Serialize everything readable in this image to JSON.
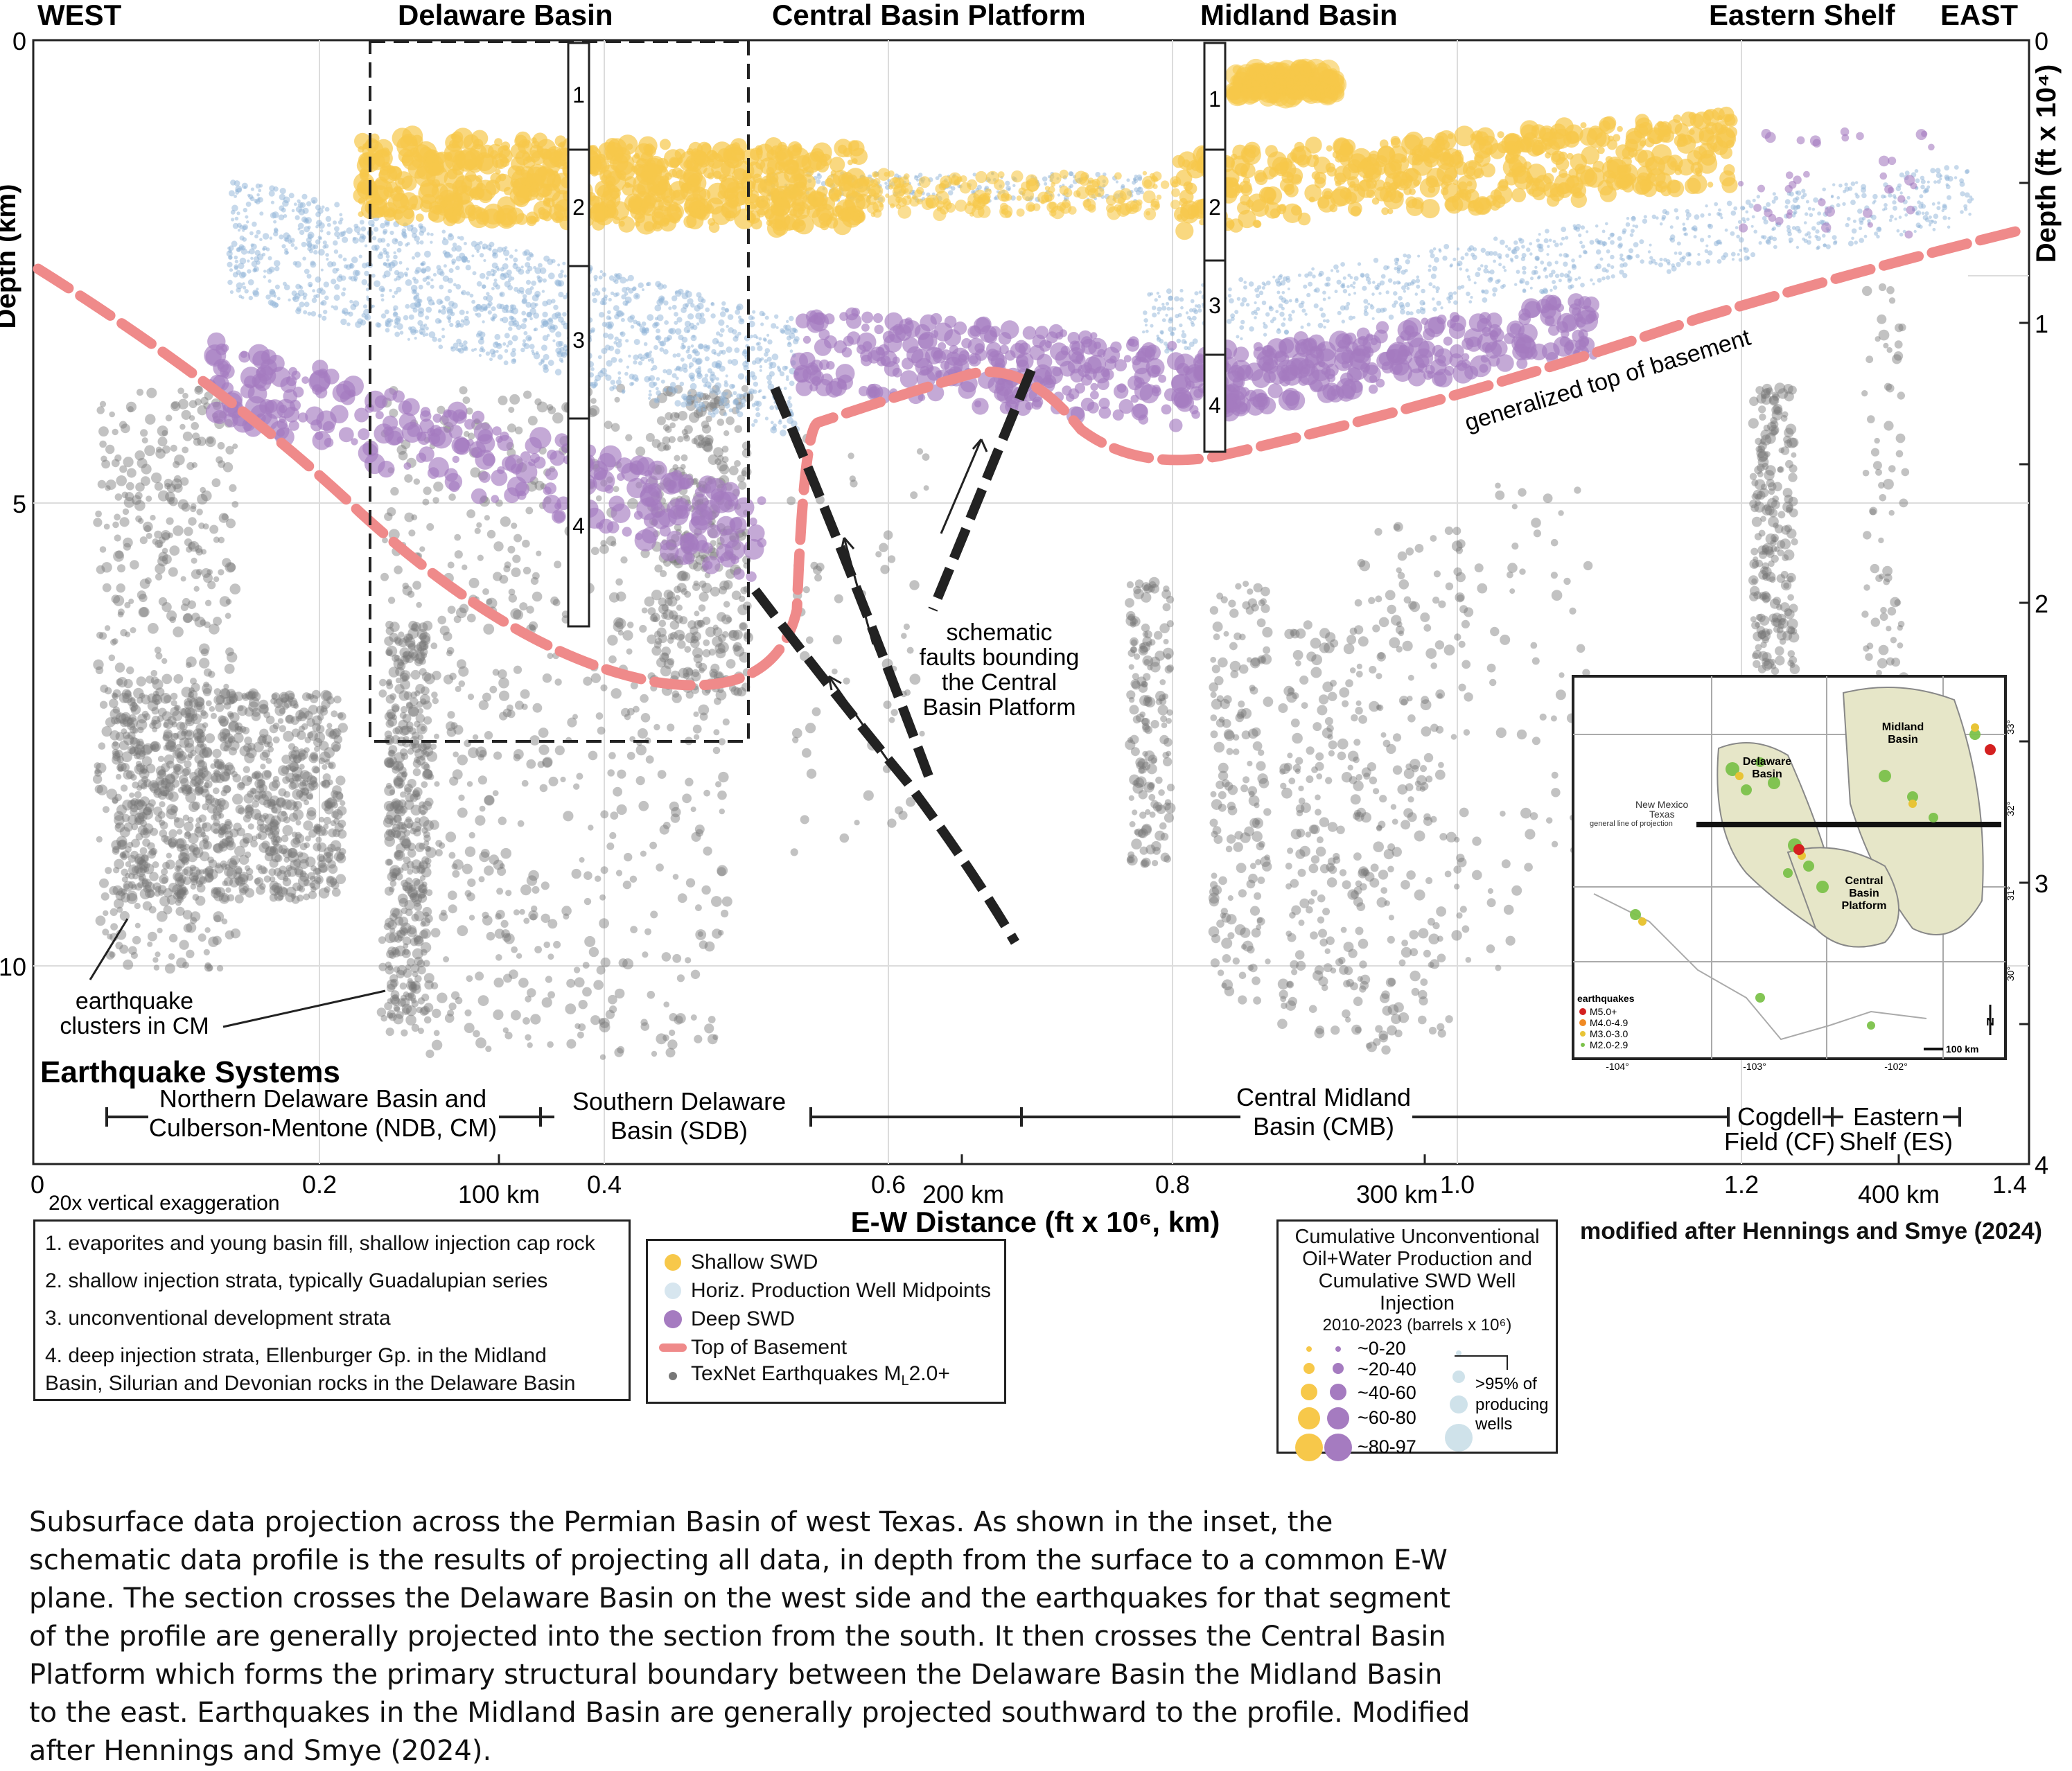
{
  "header": {
    "west": "WEST",
    "delaware_basin": "Delaware Basin",
    "central_basin_platform": "Central Basin Platform",
    "midland_basin": "Midland Basin",
    "eastern_shelf": "Eastern Shelf",
    "east": "EAST"
  },
  "axes": {
    "left_title": "Depth (km)",
    "right_title": "Depth (ft x 10⁴)",
    "bottom_title": "E-W Distance (ft x 10⁶, km)",
    "left_ticks": [
      "0",
      "5",
      "10"
    ],
    "right_ticks": [
      "0",
      "1",
      "2",
      "3",
      "4"
    ],
    "bottom_ticks_ft": [
      "0",
      "0.2",
      "0.4",
      "0.6",
      "0.8",
      "1.0",
      "1.2",
      "1.4"
    ],
    "bottom_ticks_km": [
      "100 km",
      "200 km",
      "300 km",
      "400 km"
    ],
    "vertical_exaggeration": "20x vertical exaggeration"
  },
  "annotations": {
    "generalized_top": "generalized top of basement",
    "schematic_faults": [
      "schematic",
      "faults bounding",
      "the Central",
      "Basin Platform"
    ],
    "eq_clusters": [
      "earthquake",
      "clusters in CM"
    ],
    "eq_systems": "Earthquake Systems",
    "systems": {
      "ndb": [
        "Northern Delaware Basin and",
        "Culberson-Mentone (NDB, CM)"
      ],
      "sdb": [
        "Southern Delaware",
        "Basin (SDB)"
      ],
      "cmb": [
        "Central Midland",
        "Basin (CMB)"
      ],
      "cf": [
        "Cogdell",
        "Field (CF)"
      ],
      "es": [
        "Eastern",
        "Shelf (ES)"
      ]
    },
    "column_numbers": [
      "1",
      "2",
      "3",
      "4"
    ],
    "modified_after": "modified after Hennings and Smye (2024)"
  },
  "inset": {
    "delaware": [
      "Delaware",
      "Basin"
    ],
    "midland": [
      "Midland",
      "Basin"
    ],
    "central": [
      "Central",
      "Basin",
      "Platform"
    ],
    "new_mexico": "New Mexico",
    "texas": "Texas",
    "projection_line": "general line of projection",
    "eq_title": "earthquakes",
    "eq_classes": [
      "M5.0+",
      "M4.0-4.9",
      "M3.0-3.0",
      "M2.0-2.9"
    ],
    "lon_labels": [
      "-104°",
      "-103°",
      "-102°"
    ],
    "lat_labels": [
      "33°",
      "32°",
      "31°",
      "30°"
    ],
    "scale": "100 km",
    "north": "N"
  },
  "strata_key": [
    "1. evaporites and young basin fill, shallow injection cap rock",
    "2. shallow injection strata, typically Guadalupian series",
    "3. unconventional development strata",
    "4. deep injection strata, Ellenburger Gp. in the Midland",
    "Basin, Silurian and Devonian rocks in the Delaware Basin"
  ],
  "legend": {
    "shallow_swd": "Shallow SWD",
    "horiz": "Horiz. Production Well Midpoints",
    "deep_swd": "Deep SWD",
    "top_basement": "Top of Basement",
    "texnet_prefix": "TexNet Earthquakes M",
    "texnet_sub": "L",
    "texnet_suffix": "2.0+"
  },
  "cumulative": {
    "title": [
      "Cumulative Unconventional",
      "Oil+Water Production and",
      "Cumulative SWD Well",
      "Injection"
    ],
    "subtitle": "2010-2023 (barrels x 10⁶)",
    "classes": [
      "~0-20",
      "~20-40",
      "~40-60",
      "~60-80",
      "~80-97"
    ],
    "producing": [
      "–",
      ">95% of",
      "producing",
      "wells"
    ]
  },
  "caption": "Subsurface data projection across the Permian Basin of west Texas. As shown in the inset, the schematic data profile is the results of projecting all data, in depth from the surface to a common E-W plane. The section crosses the Delaware Basin on the west side and the earthquakes for that segment of the profile are generally projected into the section from the south. It then crosses the Central Basin Platform which forms the primary structural boundary between the Delaware Basin the Midland Basin to the east. Earthquakes in the Midland Basin are generally projected southward to the profile. Modified after Hennings and Smye (2024).",
  "colors": {
    "shallow": "#f7c84a",
    "horizontal": "#8fb4d8",
    "deep": "#a57bc0",
    "basement": "#ef8a8a",
    "quake": "#777777"
  }
}
